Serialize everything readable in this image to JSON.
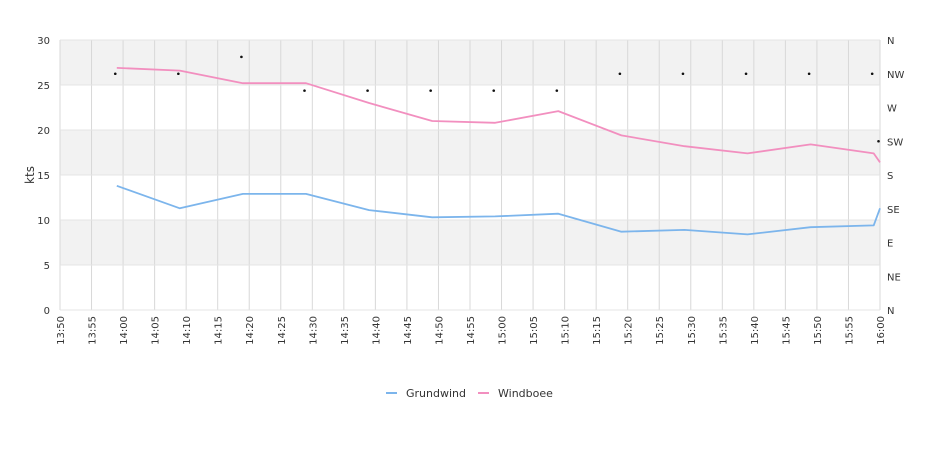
{
  "chart_data": {
    "type": "line",
    "ylabel": "kts",
    "ylim": [
      0,
      30
    ],
    "yticks": [
      "0",
      "5",
      "10",
      "15",
      "20",
      "25",
      "30"
    ],
    "x_range": [
      "13:50",
      "16:00"
    ],
    "xticks": [
      "13:50",
      "13:55",
      "14:00",
      "14:05",
      "14:10",
      "14:15",
      "14:20",
      "14:25",
      "14:30",
      "14:35",
      "14:40",
      "14:45",
      "14:50",
      "14:55",
      "15:00",
      "15:05",
      "15:10",
      "15:15",
      "15:20",
      "15:25",
      "15:30",
      "15:35",
      "15:40",
      "15:45",
      "15:50",
      "15:55",
      "16:00"
    ],
    "direction_ticks": [
      "N",
      "NE",
      "E",
      "SE",
      "S",
      "SW",
      "W",
      "NW",
      "N"
    ],
    "grid": true,
    "legend_position": "bottom",
    "series": [
      {
        "name": "Grundwind",
        "color": "#7cb5ec",
        "x": [
          "13:59",
          "14:09",
          "14:19",
          "14:29",
          "14:39",
          "14:49",
          "14:59",
          "15:09",
          "15:19",
          "15:29",
          "15:39",
          "15:49",
          "15:59",
          "16:00"
        ],
        "values": [
          13.8,
          11.3,
          12.9,
          12.9,
          11.1,
          10.3,
          10.4,
          10.7,
          8.7,
          8.9,
          8.4,
          9.2,
          9.4,
          11.3
        ]
      },
      {
        "name": "Windboee",
        "color": "#f28fbf",
        "x": [
          "13:59",
          "14:09",
          "14:19",
          "14:29",
          "14:39",
          "14:49",
          "14:59",
          "15:09",
          "15:19",
          "15:29",
          "15:39",
          "15:49",
          "15:59",
          "16:00"
        ],
        "values": [
          26.9,
          26.6,
          25.2,
          25.2,
          23.0,
          21.0,
          20.8,
          22.1,
          19.4,
          18.2,
          17.4,
          18.4,
          17.4,
          16.4
        ]
      }
    ],
    "direction_points": {
      "x": [
        "13:59",
        "14:09",
        "14:19",
        "14:29",
        "14:39",
        "14:49",
        "14:59",
        "15:09",
        "15:19",
        "15:29",
        "15:39",
        "15:49",
        "15:59",
        "16:00"
      ],
      "values": [
        "NW",
        "NW",
        "NNW",
        "WNW",
        "WNW",
        "WNW",
        "WNW",
        "WNW",
        "NW",
        "NW",
        "NW",
        "NW",
        "NW",
        "SW"
      ]
    }
  }
}
